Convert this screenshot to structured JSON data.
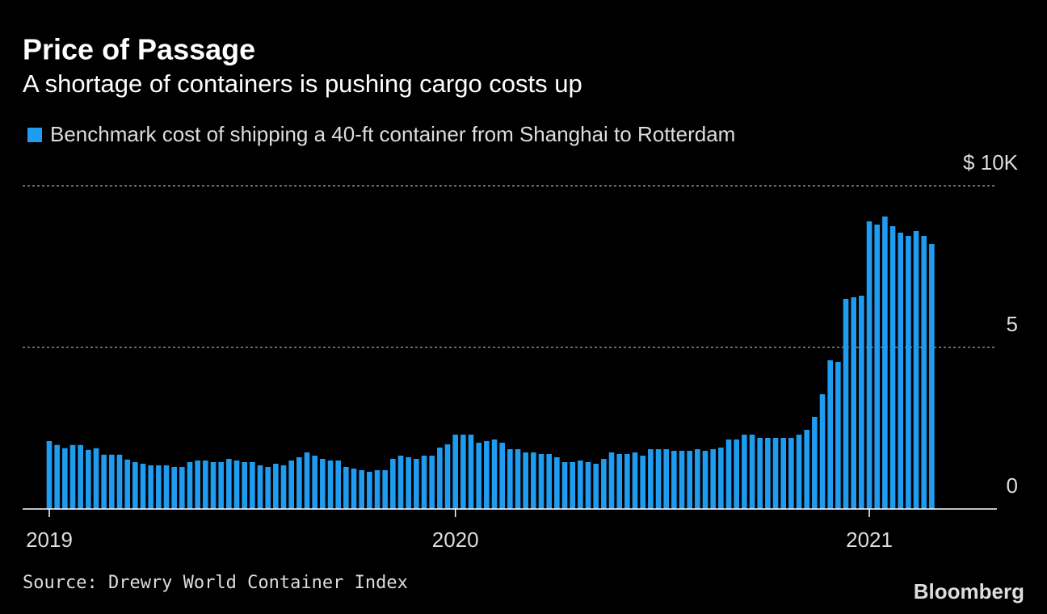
{
  "chart_data": {
    "type": "bar",
    "title": "Price of Passage",
    "subtitle": "A shortage of containers is pushing cargo costs up",
    "series": [
      {
        "name": "Benchmark cost of shipping a 40-ft container from Shanghai to Rotterdam",
        "color": "#1f9bf0",
        "values": [
          2.1,
          1.98,
          1.88,
          1.98,
          1.98,
          1.83,
          1.88,
          1.68,
          1.68,
          1.68,
          1.53,
          1.45,
          1.4,
          1.35,
          1.35,
          1.35,
          1.3,
          1.3,
          1.45,
          1.5,
          1.5,
          1.45,
          1.45,
          1.55,
          1.5,
          1.45,
          1.45,
          1.35,
          1.3,
          1.4,
          1.35,
          1.5,
          1.6,
          1.75,
          1.65,
          1.55,
          1.5,
          1.5,
          1.3,
          1.25,
          1.2,
          1.15,
          1.2,
          1.2,
          1.55,
          1.65,
          1.6,
          1.55,
          1.65,
          1.65,
          1.9,
          2.0,
          2.3,
          2.3,
          2.3,
          2.05,
          2.1,
          2.15,
          2.05,
          1.85,
          1.85,
          1.75,
          1.75,
          1.7,
          1.7,
          1.6,
          1.45,
          1.45,
          1.5,
          1.45,
          1.4,
          1.55,
          1.75,
          1.7,
          1.7,
          1.75,
          1.65,
          1.85,
          1.85,
          1.85,
          1.8,
          1.8,
          1.8,
          1.85,
          1.8,
          1.85,
          1.9,
          2.15,
          2.15,
          2.3,
          2.3,
          2.2,
          2.2,
          2.2,
          2.2,
          2.2,
          2.3,
          2.45,
          2.85,
          3.55,
          4.6,
          4.55,
          6.5,
          6.55,
          6.6,
          8.9,
          8.8,
          9.05,
          8.75,
          8.55,
          8.45,
          8.6,
          8.45,
          8.2
        ]
      }
    ],
    "categories": [
      "2019",
      null,
      null,
      null,
      null,
      null,
      null,
      null,
      null,
      null,
      null,
      null,
      null,
      null,
      null,
      null,
      null,
      null,
      null,
      null,
      null,
      null,
      null,
      null,
      null,
      null,
      null,
      null,
      null,
      null,
      null,
      null,
      null,
      null,
      null,
      null,
      null,
      null,
      null,
      null,
      null,
      null,
      null,
      null,
      null,
      null,
      null,
      null,
      null,
      null,
      null,
      null,
      "2020",
      null,
      null,
      null,
      null,
      null,
      null,
      null,
      null,
      null,
      null,
      null,
      null,
      null,
      null,
      null,
      null,
      null,
      null,
      null,
      null,
      null,
      null,
      null,
      null,
      null,
      null,
      null,
      null,
      null,
      null,
      null,
      null,
      null,
      null,
      null,
      null,
      null,
      null,
      null,
      null,
      null,
      null,
      null,
      null,
      null,
      null,
      null,
      null,
      null,
      null,
      null,
      null,
      "2021",
      null,
      null,
      null,
      null,
      null,
      null,
      null,
      null
    ],
    "ylim": [
      0,
      10
    ],
    "yticks": [
      0,
      5,
      {
        "value": 10,
        "label": "$ 10K"
      }
    ],
    "grid": true,
    "source": "Source: Drewry World Container Index",
    "brand": "Bloomberg"
  }
}
